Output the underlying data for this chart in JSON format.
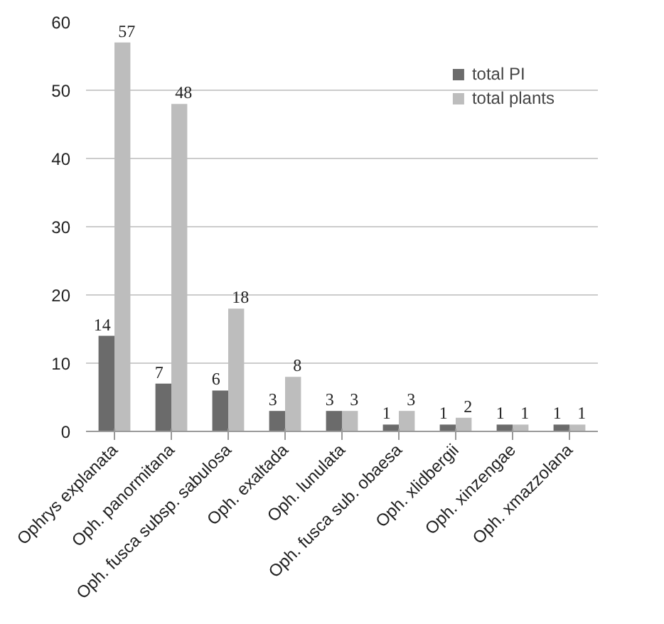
{
  "chart_data": {
    "type": "bar",
    "categories": [
      "Ophrys explanata",
      "Oph. panormitana",
      "Oph. fusca subsp. sabulosa",
      "Oph. exaltada",
      "Oph. lunulata",
      "Oph. fusca sub. obaesa",
      "Oph. xlidbergii",
      "Oph. xinzengae",
      "Oph. xmazzolana"
    ],
    "series": [
      {
        "name": "total PI",
        "color": "#6b6b6b",
        "values": [
          14,
          7,
          6,
          3,
          3,
          1,
          1,
          1,
          1
        ]
      },
      {
        "name": "total plants",
        "color": "#bdbdbd",
        "values": [
          57,
          48,
          18,
          8,
          3,
          3,
          2,
          1,
          1
        ]
      }
    ],
    "ylim": [
      0,
      60
    ],
    "yticks": [
      0,
      10,
      20,
      30,
      40,
      50,
      60
    ],
    "grid": "y",
    "legend": "top right",
    "data_labels": true
  }
}
